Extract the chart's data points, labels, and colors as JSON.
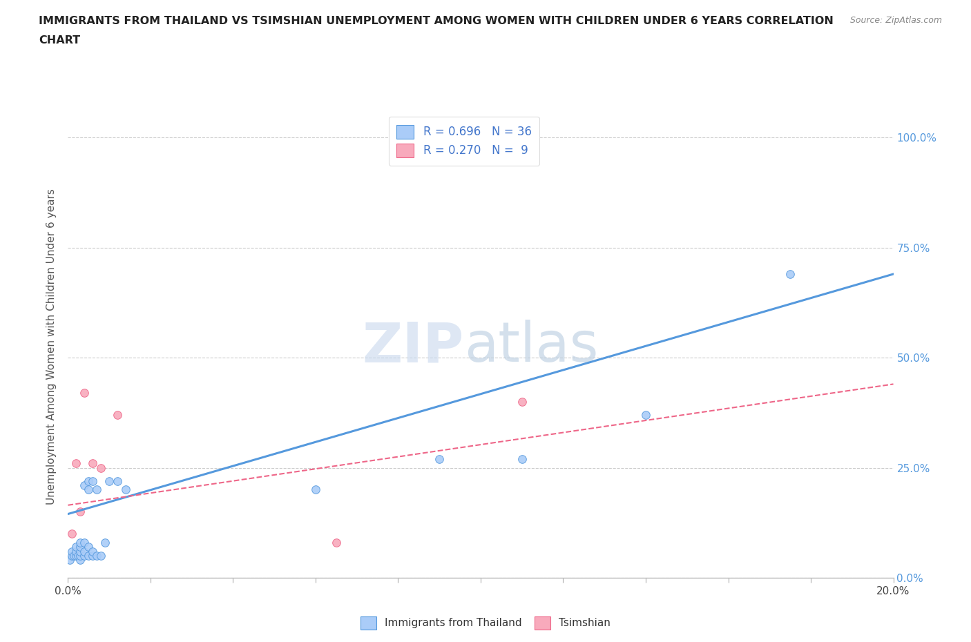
{
  "title_line1": "IMMIGRANTS FROM THAILAND VS TSIMSHIAN UNEMPLOYMENT AMONG WOMEN WITH CHILDREN UNDER 6 YEARS CORRELATION",
  "title_line2": "CHART",
  "source": "Source: ZipAtlas.com",
  "ylabel_label": "Unemployment Among Women with Children Under 6 years",
  "xlim": [
    0.0,
    0.2
  ],
  "ylim": [
    0.0,
    1.05
  ],
  "legend1_text": "R = 0.696   N = 36",
  "legend2_text": "R = 0.270   N =  9",
  "color_thailand": "#aaccf8",
  "color_tsimshian": "#f8aabc",
  "color_line_thailand": "#5599dd",
  "color_line_tsimshian": "#ee6688",
  "thailand_x": [
    0.0005,
    0.001,
    0.001,
    0.0015,
    0.002,
    0.002,
    0.002,
    0.0025,
    0.003,
    0.003,
    0.003,
    0.003,
    0.003,
    0.004,
    0.004,
    0.004,
    0.004,
    0.005,
    0.005,
    0.005,
    0.005,
    0.006,
    0.006,
    0.006,
    0.007,
    0.007,
    0.008,
    0.009,
    0.01,
    0.012,
    0.014,
    0.06,
    0.09,
    0.11,
    0.14,
    0.175
  ],
  "thailand_y": [
    0.04,
    0.05,
    0.06,
    0.05,
    0.05,
    0.06,
    0.07,
    0.05,
    0.04,
    0.05,
    0.06,
    0.07,
    0.08,
    0.05,
    0.06,
    0.08,
    0.21,
    0.05,
    0.07,
    0.2,
    0.22,
    0.05,
    0.06,
    0.22,
    0.05,
    0.2,
    0.05,
    0.08,
    0.22,
    0.22,
    0.2,
    0.2,
    0.27,
    0.27,
    0.37,
    0.69
  ],
  "tsimshian_x": [
    0.001,
    0.002,
    0.003,
    0.004,
    0.006,
    0.008,
    0.012,
    0.065,
    0.11
  ],
  "tsimshian_y": [
    0.1,
    0.26,
    0.15,
    0.42,
    0.26,
    0.25,
    0.37,
    0.08,
    0.4
  ],
  "thailand_trendline_x": [
    0.0,
    0.2
  ],
  "thailand_trendline_y": [
    0.145,
    0.69
  ],
  "tsimshian_trendline_x": [
    0.0,
    0.2
  ],
  "tsimshian_trendline_y": [
    0.165,
    0.44
  ],
  "background_color": "#ffffff",
  "grid_color": "#cccccc",
  "ytick_values": [
    0.0,
    0.25,
    0.5,
    0.75,
    1.0
  ],
  "ytick_labels": [
    "0.0%",
    "25.0%",
    "50.0%",
    "75.0%",
    "100.0%"
  ],
  "xtick_show": [
    0,
    10
  ],
  "watermark_zip_color": "#c8d8ee",
  "watermark_atlas_color": "#b8cce0"
}
